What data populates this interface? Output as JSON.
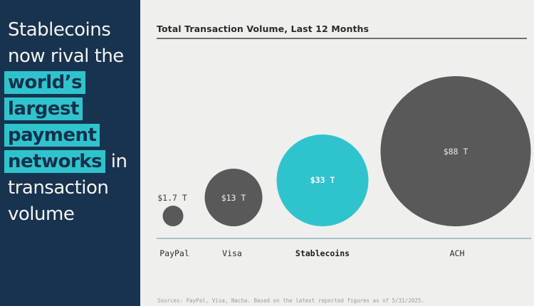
{
  "sidebar": {
    "lines": [
      {
        "text": "Stablecoins",
        "highlight": false
      },
      {
        "text": "now rival the",
        "highlight": false
      },
      {
        "text": "world’s",
        "highlight": true
      },
      {
        "text": "largest",
        "highlight": true
      },
      {
        "text": "payment",
        "highlight": true
      },
      {
        "text": "networks",
        "highlight": true,
        "suffix": " in"
      },
      {
        "text": "transaction",
        "highlight": false
      },
      {
        "text": "volume",
        "highlight": false
      }
    ]
  },
  "chart": {
    "title": "Total Transaction Volume, Last 12 Months",
    "source_note": "Sources: PayPal, Visa, Nacha. Based on the latest reported figures as of 5/31/2025."
  },
  "chart_data": {
    "type": "bubble",
    "title": "Total Transaction Volume, Last 12 Months",
    "categories": [
      "PayPal",
      "Visa",
      "Stablecoins",
      "ACH"
    ],
    "values": [
      1.7,
      13,
      33,
      88
    ],
    "value_labels": [
      "$1.7 T",
      "$13 T",
      "$33 T",
      "$88 T"
    ],
    "highlighted_category": "Stablecoins",
    "bubble_colors": [
      "#595959",
      "#595959",
      "#2fc4cd",
      "#595959"
    ],
    "layout": {
      "sizing": "area-proportional",
      "baseline": true,
      "gridlines": false,
      "legend": false
    }
  },
  "colors": {
    "sidebar_bg": "#18334f",
    "accent_teal": "#2fc4cd",
    "chart_bg": "#efefed",
    "bubble_gray": "#595959",
    "baseline_line": "#a9c0cb"
  }
}
